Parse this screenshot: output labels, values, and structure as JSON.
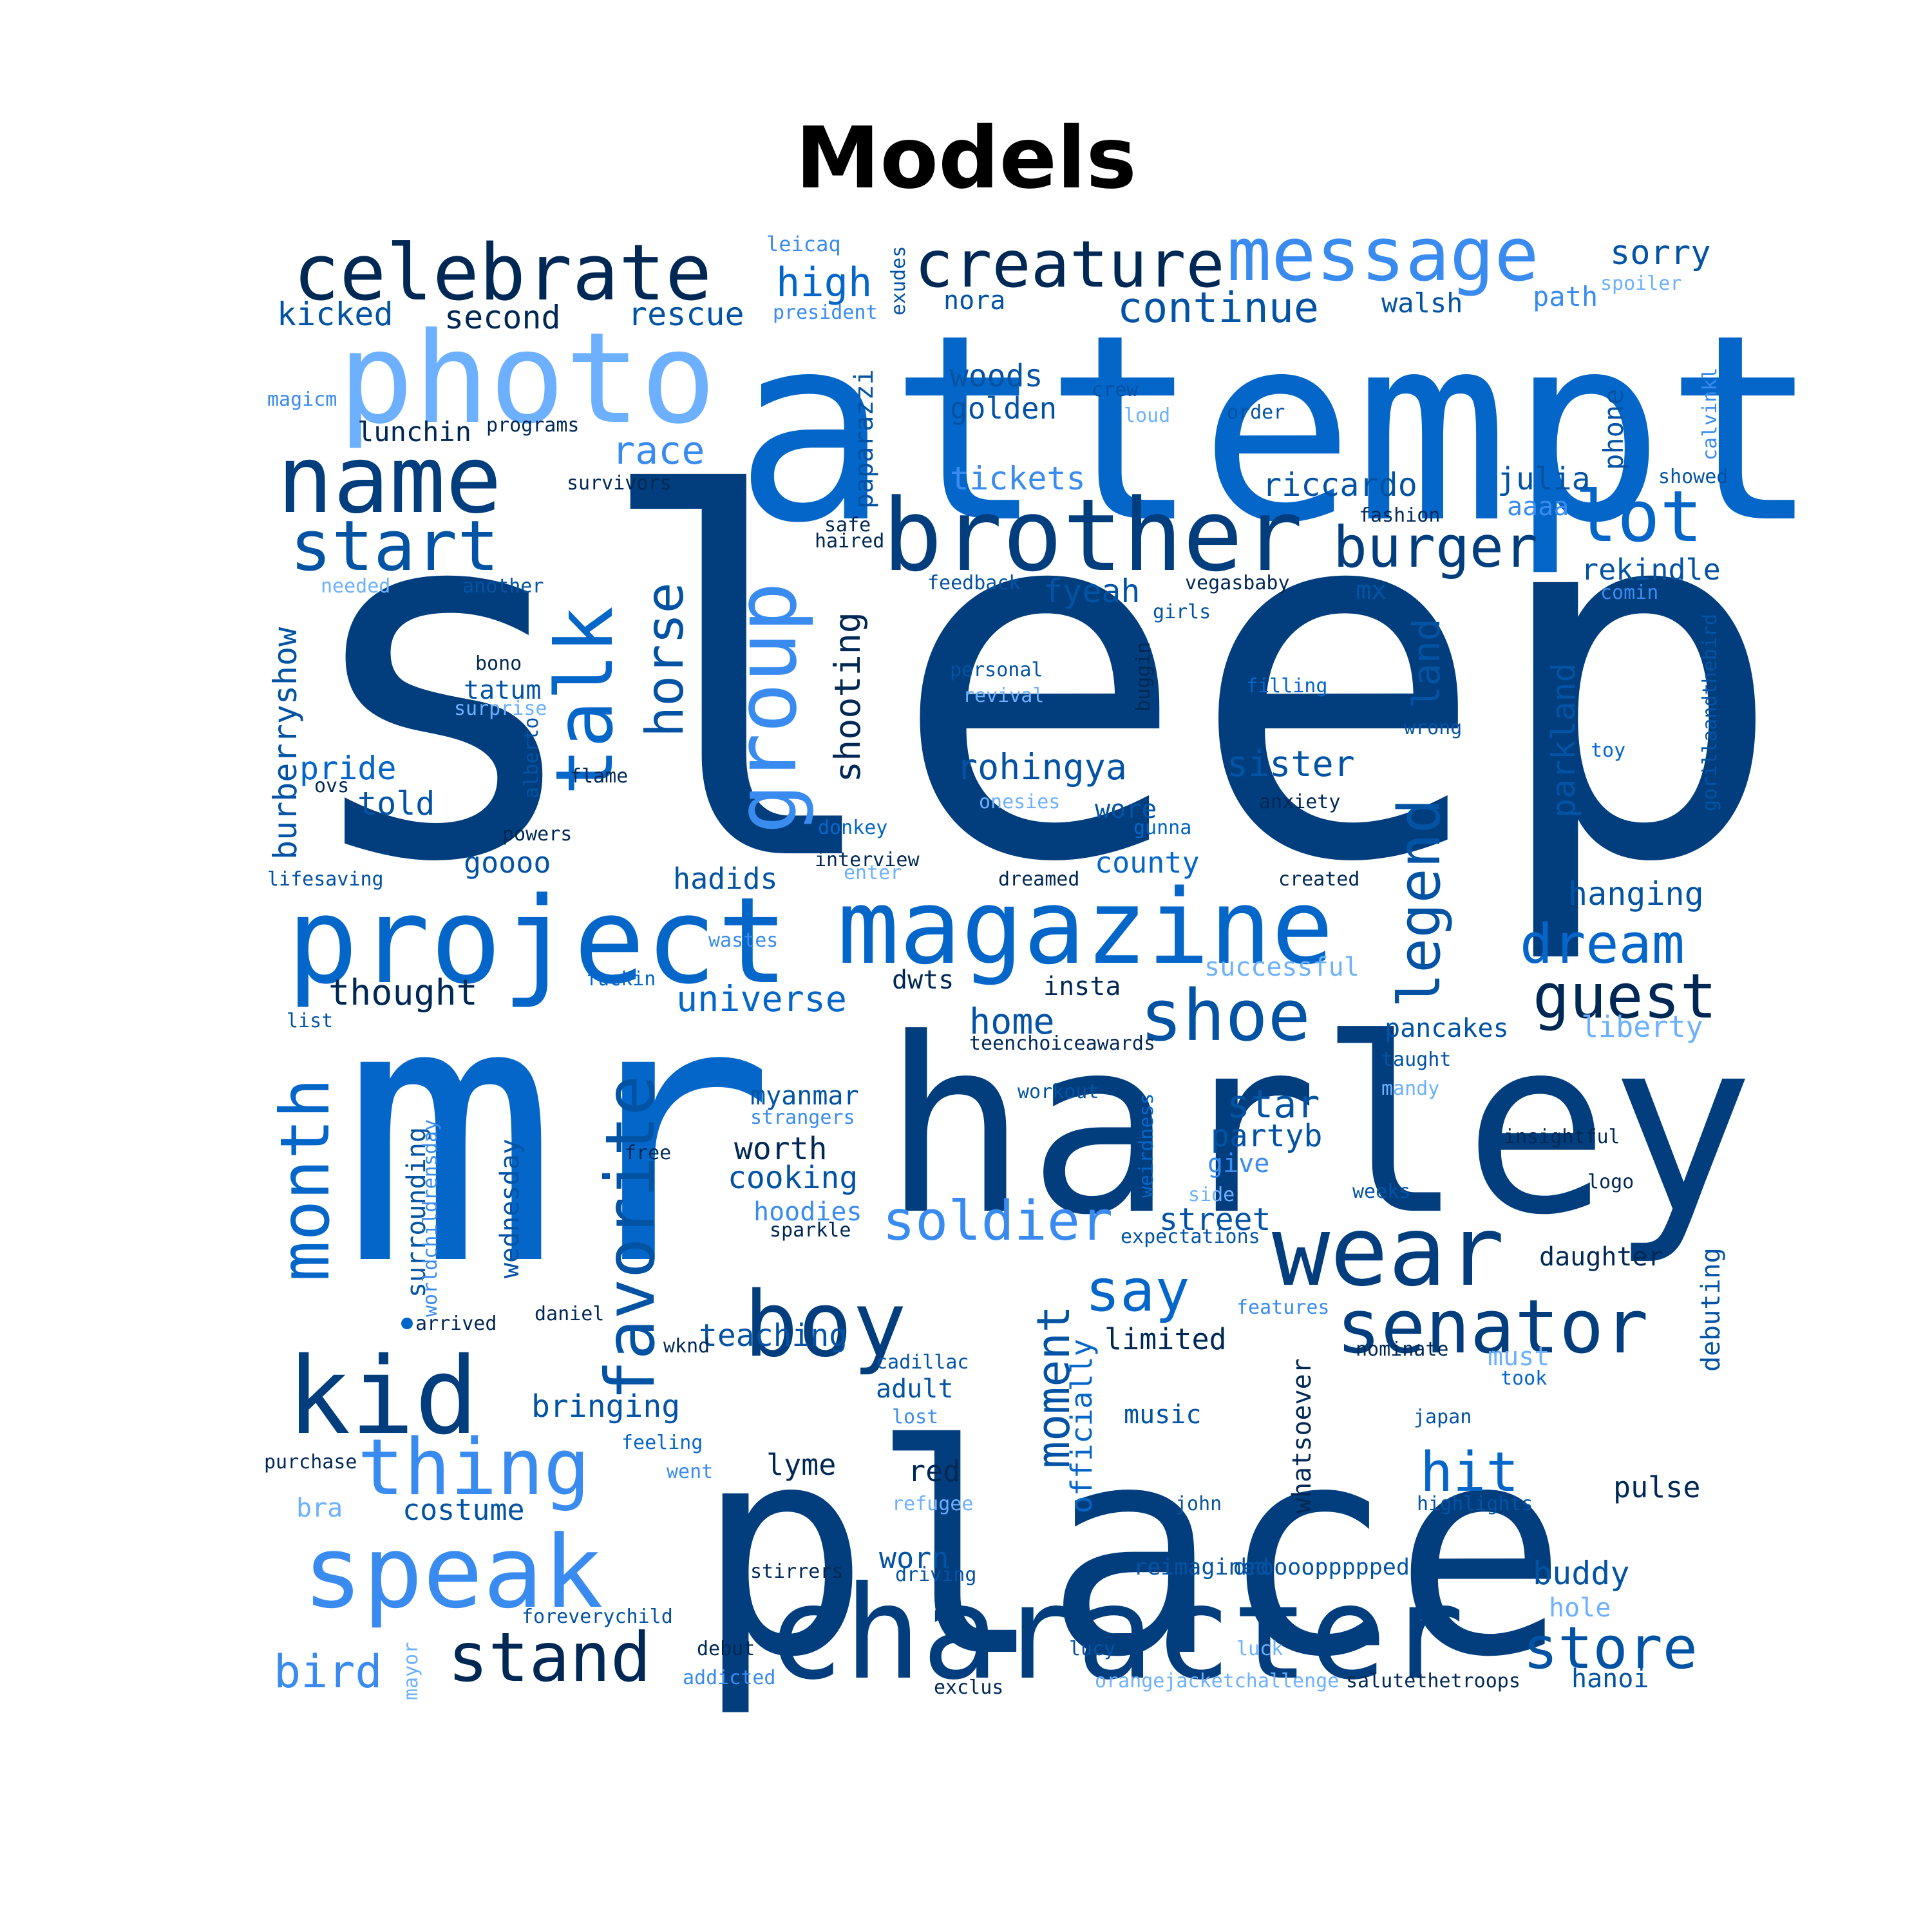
{
  "title": "Models",
  "colors": {
    "navy": "#023e7d",
    "deep": "#002855",
    "royal": "#0353a4",
    "bright": "#0466c8",
    "sky": "#3a8bf0",
    "light": "#6cb0ff",
    "dot": "#0466c8"
  },
  "words": [
    {
      "text": "sleep"
    },
    {
      "text": "attempt"
    },
    {
      "text": "mr"
    },
    {
      "text": "harley"
    },
    {
      "text": "place"
    },
    {
      "text": "project"
    },
    {
      "text": "magazine"
    },
    {
      "text": "character"
    },
    {
      "text": "photo"
    },
    {
      "text": "brother"
    },
    {
      "text": "name"
    },
    {
      "text": "celebrate"
    },
    {
      "text": "creature"
    },
    {
      "text": "message"
    },
    {
      "text": "start"
    },
    {
      "text": "talk"
    },
    {
      "text": "group"
    },
    {
      "text": "horse"
    },
    {
      "text": "lot"
    },
    {
      "text": "burger"
    },
    {
      "text": "speak"
    },
    {
      "text": "kid"
    },
    {
      "text": "boy"
    },
    {
      "text": "wear"
    },
    {
      "text": "senator"
    },
    {
      "text": "thing"
    },
    {
      "text": "stand"
    },
    {
      "text": "shoe"
    },
    {
      "text": "guest"
    },
    {
      "text": "favorite"
    },
    {
      "text": "month"
    },
    {
      "text": "legend"
    },
    {
      "text": "dream"
    },
    {
      "text": "soldier"
    },
    {
      "text": "say"
    },
    {
      "text": "moment"
    },
    {
      "text": "hit"
    },
    {
      "text": "store"
    },
    {
      "text": "bird"
    },
    {
      "text": "continue"
    },
    {
      "text": "high"
    },
    {
      "text": "race"
    },
    {
      "text": "rescue"
    },
    {
      "text": "second"
    },
    {
      "text": "kicked"
    },
    {
      "text": "sorry"
    },
    {
      "text": "walsh"
    },
    {
      "text": "path"
    },
    {
      "text": "spoiler"
    },
    {
      "text": "leicaq"
    },
    {
      "text": "president"
    },
    {
      "text": "exudes"
    },
    {
      "text": "nora"
    },
    {
      "text": "woods"
    },
    {
      "text": "golden"
    },
    {
      "text": "crew"
    },
    {
      "text": "loud"
    },
    {
      "text": "order"
    },
    {
      "text": "magicm"
    },
    {
      "text": "lunchin"
    },
    {
      "text": "programs"
    },
    {
      "text": "paparazzi"
    },
    {
      "text": "tickets"
    },
    {
      "text": "riccardo"
    },
    {
      "text": "julia"
    },
    {
      "text": "phone"
    },
    {
      "text": "calvinkl"
    },
    {
      "text": "showed"
    },
    {
      "text": "survivors"
    },
    {
      "text": "safe"
    },
    {
      "text": "haired"
    },
    {
      "text": "fashion"
    },
    {
      "text": "aaaa"
    },
    {
      "text": "rekindle"
    },
    {
      "text": "mx"
    },
    {
      "text": "comin"
    },
    {
      "text": "needed"
    },
    {
      "text": "another"
    },
    {
      "text": "feedback"
    },
    {
      "text": "vegasbaby"
    },
    {
      "text": "fyeah"
    },
    {
      "text": "girls"
    },
    {
      "text": "land"
    },
    {
      "text": "shooting"
    },
    {
      "text": "burberryshow"
    },
    {
      "text": "bono"
    },
    {
      "text": "tatum"
    },
    {
      "text": "surprise"
    },
    {
      "text": "personal"
    },
    {
      "text": "revival"
    },
    {
      "text": "buggin"
    },
    {
      "text": "filling"
    },
    {
      "text": "wrong"
    },
    {
      "text": "gorillaandthebird"
    },
    {
      "text": "toy"
    },
    {
      "text": "parkland"
    },
    {
      "text": "pride"
    },
    {
      "text": "ovs"
    },
    {
      "text": "told"
    },
    {
      "text": "alberto"
    },
    {
      "text": "flame"
    },
    {
      "text": "rohingya"
    },
    {
      "text": "sister"
    },
    {
      "text": "onesies"
    },
    {
      "text": "anxiety"
    },
    {
      "text": "wore"
    },
    {
      "text": "gunna"
    },
    {
      "text": "powers"
    },
    {
      "text": "donkey"
    },
    {
      "text": "goooo"
    },
    {
      "text": "interview"
    },
    {
      "text": "enter"
    },
    {
      "text": "county"
    },
    {
      "text": "lifesaving"
    },
    {
      "text": "hadids"
    },
    {
      "text": "dreamed"
    },
    {
      "text": "created"
    },
    {
      "text": "hanging"
    },
    {
      "text": "thought"
    },
    {
      "text": "wastes"
    },
    {
      "text": "successful"
    },
    {
      "text": "universe"
    },
    {
      "text": "dwts"
    },
    {
      "text": "insta"
    },
    {
      "text": "fuckin"
    },
    {
      "text": "list"
    },
    {
      "text": "home"
    },
    {
      "text": "teenchoiceawards"
    },
    {
      "text": "pancakes"
    },
    {
      "text": "liberty"
    },
    {
      "text": "taught"
    },
    {
      "text": "mandy"
    },
    {
      "text": "myanmar"
    },
    {
      "text": "workout"
    },
    {
      "text": "strangers"
    },
    {
      "text": "star"
    },
    {
      "text": "surrounding"
    },
    {
      "text": "worldchildrensday"
    },
    {
      "text": "wednesday"
    },
    {
      "text": "partyb"
    },
    {
      "text": "free"
    },
    {
      "text": "worth"
    },
    {
      "text": "weirdness"
    },
    {
      "text": "insightful"
    },
    {
      "text": "cooking"
    },
    {
      "text": "give"
    },
    {
      "text": "logo"
    },
    {
      "text": "side"
    },
    {
      "text": "weeks"
    },
    {
      "text": "hoodies"
    },
    {
      "text": "street"
    },
    {
      "text": "sparkle"
    },
    {
      "text": "expectations"
    },
    {
      "text": "debuting"
    },
    {
      "text": "daughter"
    },
    {
      "text": "arrived"
    },
    {
      "text": "daniel"
    },
    {
      "text": "features"
    },
    {
      "text": "teaching"
    },
    {
      "text": "limited"
    },
    {
      "text": "nominate"
    },
    {
      "text": "wknd"
    },
    {
      "text": "cadillac"
    },
    {
      "text": "must"
    },
    {
      "text": "adult"
    },
    {
      "text": "took"
    },
    {
      "text": "bringing"
    },
    {
      "text": "lost"
    },
    {
      "text": "officially"
    },
    {
      "text": "music"
    },
    {
      "text": "whatsoever"
    },
    {
      "text": "japan"
    },
    {
      "text": "feeling"
    },
    {
      "text": "purchase"
    },
    {
      "text": "went"
    },
    {
      "text": "lyme"
    },
    {
      "text": "red"
    },
    {
      "text": "pulse"
    },
    {
      "text": "bra"
    },
    {
      "text": "costume"
    },
    {
      "text": "refugee"
    },
    {
      "text": "john"
    },
    {
      "text": "highlights"
    },
    {
      "text": "worn"
    },
    {
      "text": "stirrers"
    },
    {
      "text": "driving"
    },
    {
      "text": "reimagined"
    },
    {
      "text": "drooooppppped"
    },
    {
      "text": "buddy"
    },
    {
      "text": "foreverychild"
    },
    {
      "text": "hole"
    },
    {
      "text": "mayor"
    },
    {
      "text": "debut"
    },
    {
      "text": "lucy"
    },
    {
      "text": "luck"
    },
    {
      "text": "addicted"
    },
    {
      "text": "exclus"
    },
    {
      "text": "orangejacketchallenge"
    },
    {
      "text": "salutethetroops"
    },
    {
      "text": "hanoi"
    }
  ]
}
